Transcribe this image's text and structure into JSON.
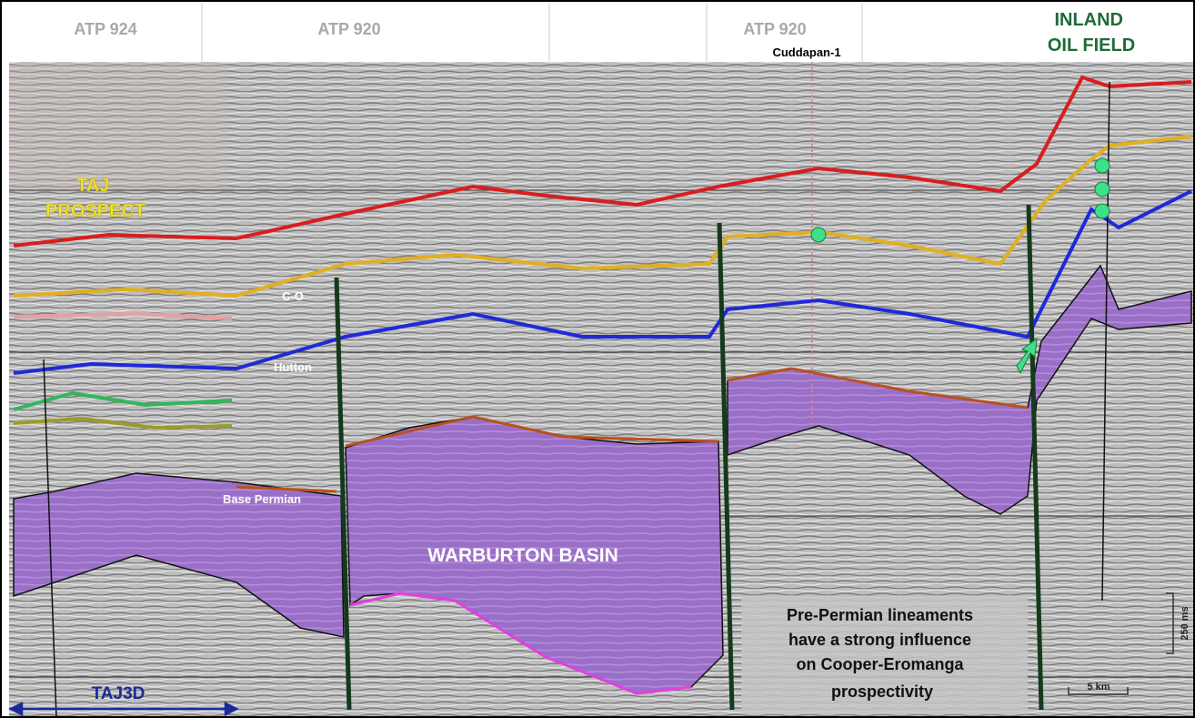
{
  "header": {
    "permits": [
      "ATP 924",
      "ATP 920",
      "ATP 920"
    ],
    "well": "Cuddapan-1",
    "inland": [
      "INLAND",
      "OIL FIELD"
    ]
  },
  "labels": {
    "prospect": [
      "TAJ",
      "PROSPECT"
    ],
    "co": "C-O",
    "hutton": "Hutton",
    "base_permian": "Base Permian",
    "basin": "WARBURTON BASIN",
    "survey": "TAJ3D"
  },
  "note": [
    "Pre-Permian lineaments",
    "have a strong influence",
    "on Cooper-Eromanga",
    "prospectivity"
  ],
  "scale": {
    "time": "250 ms",
    "distance": "5 km"
  }
}
